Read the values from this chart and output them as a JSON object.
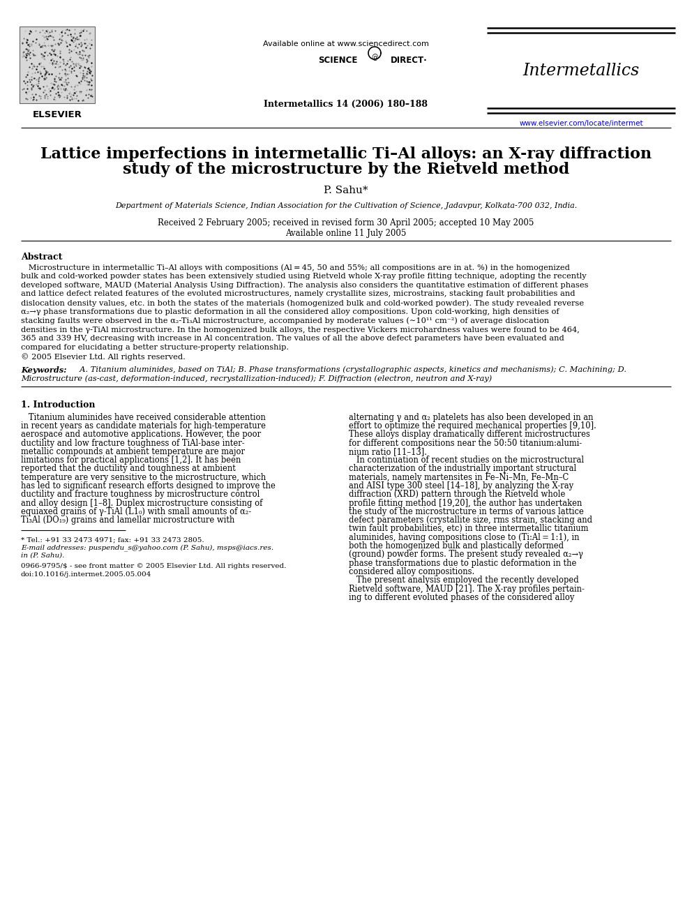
{
  "title_line1": "Lattice imperfections in intermetallic Ti–Al alloys: an X-ray diffraction",
  "title_line2": "study of the microstructure by the Rietveld method",
  "author": "P. Sahu*",
  "affiliation": "Department of Materials Science, Indian Association for the Cultivation of Science, Jadavpur, Kolkata-700 032, India.",
  "received": "Received 2 February 2005; received in revised form 30 April 2005; accepted 10 May 2005",
  "available": "Available online 11 July 2005",
  "journal_header": "Available online at www.sciencedirect.com",
  "journal_name": "Intermetallics",
  "journal_citation": "Intermetallics 14 (2006) 180–188",
  "journal_url": "www.elsevier.com/locate/intermet",
  "elsevier_text": "ELSEVIER",
  "abstract_title": "Abstract",
  "keywords_label": "Keywords:",
  "section1_title": "1. Introduction",
  "footnote1": "* Tel.: +91 33 2473 4971; fax: +91 33 2473 2805.",
  "footnote2": "E-mail addresses: puspendu_s@yahoo.com (P. Sahu), msps@iacs.res.in",
  "footnote2b": "in (P. Sahu).",
  "footnote3": "0966-9795/$ - see front matter © 2005 Elsevier Ltd. All rights reserved.",
  "footnote4": "doi:10.1016/j.intermet.2005.05.004",
  "bg_color": "#ffffff",
  "text_color": "#000000",
  "link_color": "#0000bb"
}
